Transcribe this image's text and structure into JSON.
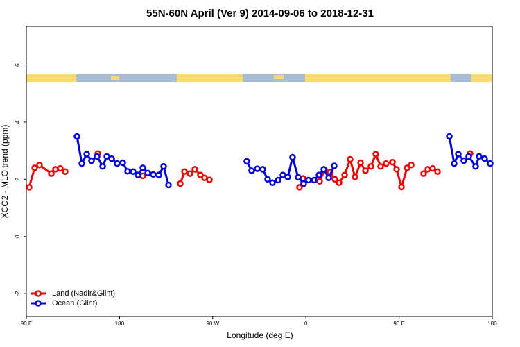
{
  "chart_data": {
    "type": "line",
    "title": "55N-60N April (Ver 9)   2014-09-06 to 2018-12-31",
    "x_label": "Longitude (deg E)",
    "y_label": "XCO2 - MLO trend (ppm)",
    "xlim": [
      90,
      540
    ],
    "xticks": [
      {
        "value": 90,
        "label": "90 E"
      },
      {
        "value": 180,
        "label": "180"
      },
      {
        "value": 270,
        "label": "90 W"
      },
      {
        "value": 360,
        "label": "0"
      },
      {
        "value": 450,
        "label": "90 E"
      },
      {
        "value": 540,
        "label": "180"
      }
    ],
    "ylim": [
      -2.8,
      7.35
    ],
    "yticks": [
      -2,
      0,
      2,
      4,
      6
    ],
    "legend": "bottom-left",
    "series": [
      {
        "name": "Land (Nadir&Glint)",
        "color": "#ee0000",
        "x": [
          92.7,
          98,
          102.7,
          114.1,
          118.1,
          122.8,
          127.5,
          null,
          159,
          null,
          202.5,
          null,
          238.7,
          242.7,
          248,
          252.7,
          258.1,
          262.1,
          266.8,
          null,
          353.8,
          357.2,
          373.3,
          378,
          383.3,
          388,
          392,
          397.4,
          402.7,
          407.4,
          412.8,
          417.5,
          422.8,
          427.5,
          432.2,
          437.5,
          443.6,
          447.6,
          452.3,
          457.7,
          461.7,
          null,
          473.7,
          477.7,
          482.4,
          487.1,
          null,
          518.6
        ],
        "values": [
          1.72,
          2.4,
          2.5,
          2.2,
          2.35,
          2.38,
          2.27,
          null,
          2.9,
          null,
          2.12,
          null,
          1.85,
          2.27,
          2.2,
          2.35,
          2.15,
          2.05,
          1.98,
          null,
          1.72,
          2.03,
          1.93,
          2.33,
          2.25,
          2.0,
          1.88,
          2.15,
          2.7,
          2.08,
          2.58,
          2.3,
          2.45,
          2.88,
          2.45,
          2.55,
          2.6,
          2.35,
          1.73,
          2.4,
          2.5,
          null,
          2.2,
          2.35,
          2.38,
          2.27,
          null,
          2.9
        ]
      },
      {
        "name": "Ocean (Glint)",
        "color": "#0000dd",
        "x": [
          138.9,
          143.6,
          148.3,
          152.9,
          158.3,
          163.7,
          167.7,
          172.4,
          177.7,
          183.1,
          187.8,
          193.1,
          197.8,
          202.5,
          207.2,
          212.5,
          217.9,
          222.6,
          227.3,
          null,
          302.9,
          307.6,
          313,
          318.3,
          323,
          327.7,
          333.1,
          337.8,
          342.5,
          347.1,
          352.5,
          357.9,
          362.5,
          367.9,
          372.6,
          377.3,
          382,
          387.3,
          null,
          498.5,
          503.2,
          507.2,
          512.5,
          517.2,
          523.9,
          527.3,
          532.6,
          538
        ],
        "values": [
          3.5,
          2.55,
          2.88,
          2.65,
          2.8,
          2.45,
          2.8,
          2.72,
          2.55,
          2.58,
          2.28,
          2.27,
          2.15,
          2.4,
          2.22,
          2.17,
          2.15,
          2.45,
          1.8,
          null,
          2.63,
          2.3,
          2.37,
          2.35,
          2.0,
          1.88,
          1.97,
          2.15,
          2.08,
          2.77,
          2.07,
          1.85,
          1.97,
          1.97,
          2.15,
          2.35,
          2.05,
          2.47,
          null,
          3.5,
          2.55,
          2.88,
          2.65,
          2.8,
          2.45,
          2.8,
          2.72,
          2.55
        ]
      }
    ]
  }
}
